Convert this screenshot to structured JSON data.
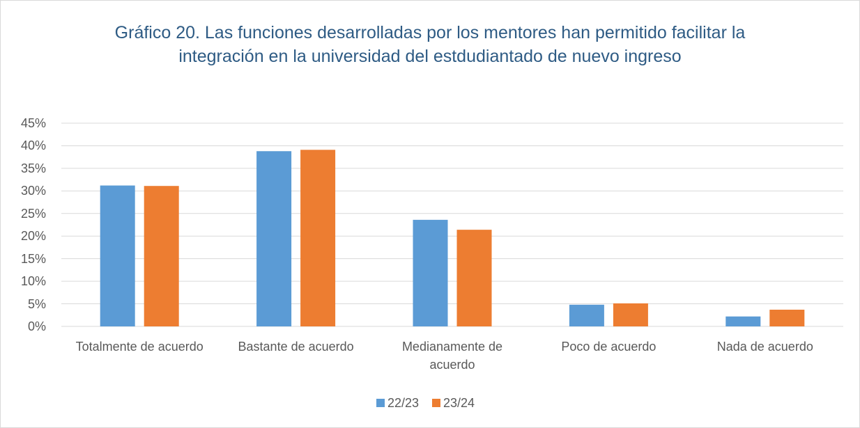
{
  "chart_data": {
    "type": "bar",
    "title": "Gráfico 20. Las funciones desarrolladas por los mentores han permitido facilitar la integración en la universidad del estdudiantado de nuevo ingreso",
    "categories": [
      "Totalmente de acuerdo",
      "Bastante de acuerdo",
      "Medianamente de acuerdo",
      "Poco de acuerdo",
      "Nada de acuerdo"
    ],
    "series": [
      {
        "name": "22/23",
        "color": "#5b9bd5",
        "values": [
          31.2,
          38.8,
          23.6,
          4.8,
          2.2
        ]
      },
      {
        "name": "23/24",
        "color": "#ed7d31",
        "values": [
          31.1,
          39.1,
          21.4,
          5.1,
          3.7
        ]
      }
    ],
    "ylim": [
      0,
      45
    ],
    "yticks": [
      {
        "value": 0,
        "label": "0%"
      },
      {
        "value": 5,
        "label": "5%"
      },
      {
        "value": 10,
        "label": "10%"
      },
      {
        "value": 15,
        "label": "15%"
      },
      {
        "value": 20,
        "label": "20%"
      },
      {
        "value": 25,
        "label": "25%"
      },
      {
        "value": 30,
        "label": "30%"
      },
      {
        "value": 35,
        "label": "35%"
      },
      {
        "value": 40,
        "label": "40%"
      },
      {
        "value": 45,
        "label": "45%"
      }
    ],
    "grid": true,
    "legend": "bottom"
  }
}
